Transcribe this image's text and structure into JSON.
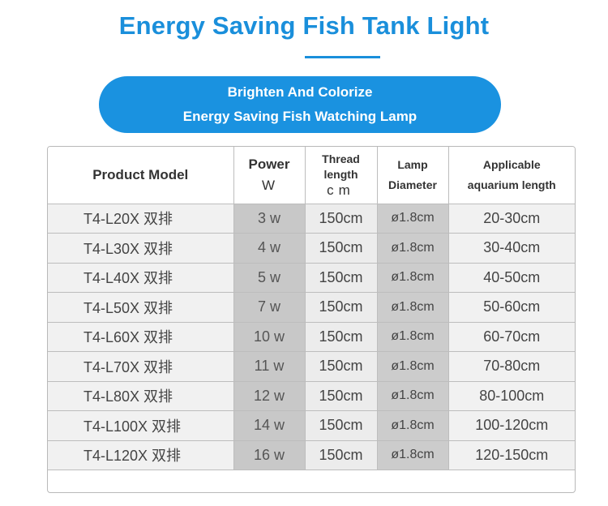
{
  "title": "Energy Saving Fish Tank Light",
  "banner": {
    "line1": "Brighten And Colorize",
    "line2": "Energy Saving Fish Watching Lamp"
  },
  "table": {
    "headers": {
      "model": "Product Model",
      "power": "Power",
      "power_unit": "W",
      "thread_line1": "Thread",
      "thread_line2": "length",
      "thread_unit": "cm",
      "diameter_line1": "Lamp",
      "diameter_line2": "Diameter",
      "aquarium_line1": "Applicable",
      "aquarium_line2": "aquarium length"
    },
    "rows": [
      {
        "model": "T4-L20X 双排",
        "power": "3 w",
        "thread": "150cm",
        "diameter": "ø1.8cm",
        "aquarium": "20-30cm"
      },
      {
        "model": "T4-L30X 双排",
        "power": "4 w",
        "thread": "150cm",
        "diameter": "ø1.8cm",
        "aquarium": "30-40cm"
      },
      {
        "model": "T4-L40X 双排",
        "power": "5 w",
        "thread": "150cm",
        "diameter": "ø1.8cm",
        "aquarium": "40-50cm"
      },
      {
        "model": "T4-L50X 双排",
        "power": "7 w",
        "thread": "150cm",
        "diameter": "ø1.8cm",
        "aquarium": "50-60cm"
      },
      {
        "model": "T4-L60X 双排",
        "power": "10 w",
        "thread": "150cm",
        "diameter": "ø1.8cm",
        "aquarium": "60-70cm"
      },
      {
        "model": "T4-L70X 双排",
        "power": "11 w",
        "thread": "150cm",
        "diameter": "ø1.8cm",
        "aquarium": "70-80cm"
      },
      {
        "model": "T4-L80X 双排",
        "power": "12 w",
        "thread": "150cm",
        "diameter": "ø1.8cm",
        "aquarium": "80-100cm"
      },
      {
        "model": "T4-L100X 双排",
        "power": "14 w",
        "thread": "150cm",
        "diameter": "ø1.8cm",
        "aquarium": "100-120cm"
      },
      {
        "model": "T4-L120X 双排",
        "power": "16 w",
        "thread": "150cm",
        "diameter": "ø1.8cm",
        "aquarium": "120-150cm"
      }
    ]
  }
}
